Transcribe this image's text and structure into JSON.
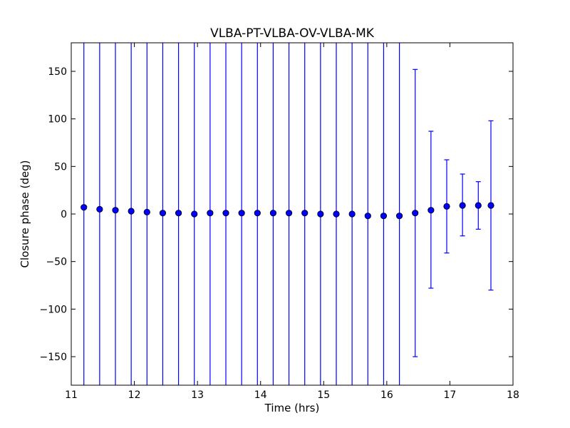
{
  "chart_data": {
    "type": "scatter",
    "title": "VLBA-PT-VLBA-OV-VLBA-MK",
    "xlabel": "Time (hrs)",
    "ylabel": "Closure phase (deg)",
    "xlim": [
      11,
      18
    ],
    "ylim": [
      -180,
      180
    ],
    "xticks": [
      11,
      12,
      13,
      14,
      15,
      16,
      17,
      18
    ],
    "xtick_labels": [
      "11",
      "12",
      "13",
      "14",
      "15",
      "16",
      "17",
      "18"
    ],
    "yticks": [
      -150,
      -100,
      -50,
      0,
      50,
      100,
      150
    ],
    "ytick_labels": [
      "−150",
      "−100",
      "−50",
      "0",
      "50",
      "100",
      "150"
    ],
    "grid": false,
    "marker": "circle",
    "series": [
      {
        "color": "#0000ff",
        "x": [
          11.2,
          11.45,
          11.7,
          11.95,
          12.2,
          12.45,
          12.7,
          12.95,
          13.2,
          13.45,
          13.7,
          13.95,
          14.2,
          14.45,
          14.7,
          14.95,
          15.2,
          15.45,
          15.7,
          15.95,
          16.2,
          16.45,
          16.7,
          16.95,
          17.2,
          17.45,
          17.65
        ],
        "y": [
          7,
          5,
          4,
          3,
          2,
          1,
          1,
          0,
          1,
          1,
          1,
          1,
          1,
          1,
          1,
          0,
          0,
          0,
          -2,
          -2,
          -2,
          1,
          4,
          8,
          9,
          9,
          9
        ],
        "yerr_low": [
          -180,
          -180,
          -180,
          -180,
          -180,
          -180,
          -180,
          -180,
          -180,
          -180,
          -180,
          -180,
          -180,
          -180,
          -180,
          -180,
          -180,
          -180,
          -180,
          -180,
          -180,
          -150,
          -78,
          -41,
          -23,
          -16,
          -80
        ],
        "yerr_high": [
          180,
          180,
          180,
          180,
          180,
          180,
          180,
          180,
          180,
          180,
          180,
          180,
          180,
          180,
          180,
          180,
          180,
          180,
          180,
          180,
          180,
          152,
          87,
          57,
          42,
          34,
          98
        ]
      }
    ]
  }
}
